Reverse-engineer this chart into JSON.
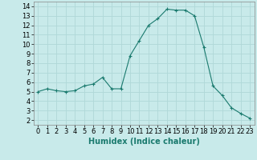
{
  "x": [
    0,
    1,
    2,
    3,
    4,
    5,
    6,
    7,
    8,
    9,
    10,
    11,
    12,
    13,
    14,
    15,
    16,
    17,
    18,
    19,
    20,
    21,
    22,
    23
  ],
  "y": [
    5.0,
    5.3,
    5.1,
    5.0,
    5.1,
    5.6,
    5.8,
    6.5,
    5.3,
    5.3,
    8.8,
    10.4,
    12.0,
    12.7,
    13.7,
    13.6,
    13.6,
    13.0,
    9.7,
    5.6,
    4.6,
    3.3,
    2.7,
    2.2
  ],
  "line_color": "#1a7a6e",
  "marker": "+",
  "marker_size": 3,
  "bg_color": "#c8eaea",
  "grid_color": "#b0d8d8",
  "xlabel": "Humidex (Indice chaleur)",
  "ylabel_ticks": [
    2,
    3,
    4,
    5,
    6,
    7,
    8,
    9,
    10,
    11,
    12,
    13,
    14
  ],
  "xlim": [
    -0.5,
    23.5
  ],
  "ylim": [
    1.5,
    14.5
  ],
  "xtick_labels": [
    "0",
    "1",
    "2",
    "3",
    "4",
    "5",
    "6",
    "7",
    "8",
    "9",
    "10",
    "11",
    "12",
    "13",
    "14",
    "15",
    "16",
    "17",
    "18",
    "19",
    "20",
    "21",
    "22",
    "23"
  ],
  "axis_fontsize": 7,
  "tick_fontsize": 6,
  "xlabel_fontsize": 7
}
